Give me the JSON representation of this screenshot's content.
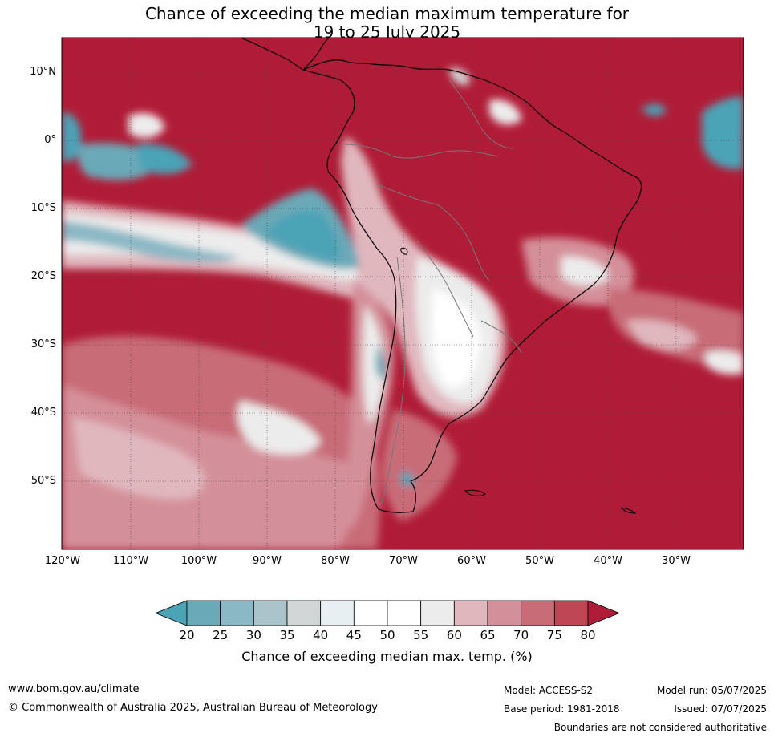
{
  "title": {
    "line1": "Chance of exceeding the median maximum temperature for",
    "line2": "19 to 25 July 2025"
  },
  "map": {
    "region": "South America and adjacent oceans",
    "background_color": "#b01c37",
    "lat_labels": [
      "10°N",
      "0°",
      "10°S",
      "20°S",
      "30°S",
      "40°S",
      "50°S"
    ],
    "lon_labels": [
      "120°W",
      "110°W",
      "100°W",
      "90°W",
      "80°W",
      "70°W",
      "60°W",
      "50°W",
      "40°W",
      "30°W"
    ]
  },
  "colorbar": {
    "ticks": [
      "20",
      "25",
      "30",
      "35",
      "40",
      "45",
      "50",
      "55",
      "60",
      "65",
      "70",
      "75",
      "80"
    ],
    "colors": [
      "#4ba3b6",
      "#6aa9b7",
      "#8ab8c5",
      "#a9c5cb",
      "#d2d6d7",
      "#e8eff2",
      "#ffffff",
      "#ffffff",
      "#ececec",
      "#e0b7bd",
      "#d4909a",
      "#c86c78",
      "#bf4654",
      "#b01c37"
    ],
    "label": "Chance of exceeding median max. temp. (%)"
  },
  "footer": {
    "url": "www.bom.gov.au/climate",
    "copyright": "© Commonwealth of Australia 2025, Australian Bureau of Meteorology",
    "model": "Model: ACCESS-S2",
    "base_period": "Base period: 1981-2018",
    "model_run": "Model run: 05/07/2025",
    "issued": "Issued: 07/07/2025",
    "boundaries": "Boundaries are not considered authoritative"
  }
}
